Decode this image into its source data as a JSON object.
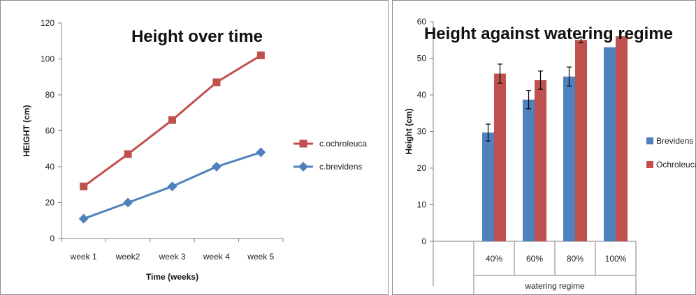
{
  "colors": {
    "red_series": "#c0504d",
    "blue_series": "#4f81bd",
    "axis": "#7f7f7f",
    "border": "#8c8c8c"
  },
  "chart_data": [
    {
      "type": "line",
      "title": "Height over time",
      "xlabel": "Time (weeks)",
      "ylabel": "HEIGHT (cm)",
      "categories": [
        "week 1",
        "week2",
        "week 3",
        "week 4",
        "week 5"
      ],
      "ylim": [
        0,
        120
      ],
      "yticks": [
        "0",
        "20",
        "40",
        "60",
        "80",
        "100",
        "120"
      ],
      "grid": false,
      "legend_position": "right",
      "series": [
        {
          "name": "c.ochroleuca",
          "values": [
            29,
            47,
            66,
            87,
            102
          ],
          "color": "#c0504d",
          "marker": "square"
        },
        {
          "name": "c.brevidens",
          "values": [
            11,
            20,
            29,
            40,
            48
          ],
          "color": "#4f81bd",
          "marker": "diamond"
        }
      ]
    },
    {
      "type": "bar",
      "title": "Height against watering regime",
      "xlabel": "watering regime",
      "ylabel": "Height (cm)",
      "categories": [
        "",
        "40%",
        "60%",
        "80%",
        "100%"
      ],
      "ylim": [
        0,
        60
      ],
      "yticks": [
        "0",
        "10",
        "20",
        "30",
        "40",
        "50",
        "60"
      ],
      "grid": false,
      "legend_position": "right",
      "series": [
        {
          "name": "Brevidens",
          "values": [
            null,
            29.7,
            38.7,
            45,
            53
          ],
          "errors": [
            null,
            2.3,
            2.5,
            2.6,
            null
          ],
          "color": "#4f81bd"
        },
        {
          "name": "Ochroleuca",
          "values": [
            null,
            45.8,
            44,
            55,
            56
          ],
          "errors": [
            null,
            2.6,
            2.5,
            0.8,
            null
          ],
          "color": "#c0504d"
        }
      ]
    }
  ]
}
